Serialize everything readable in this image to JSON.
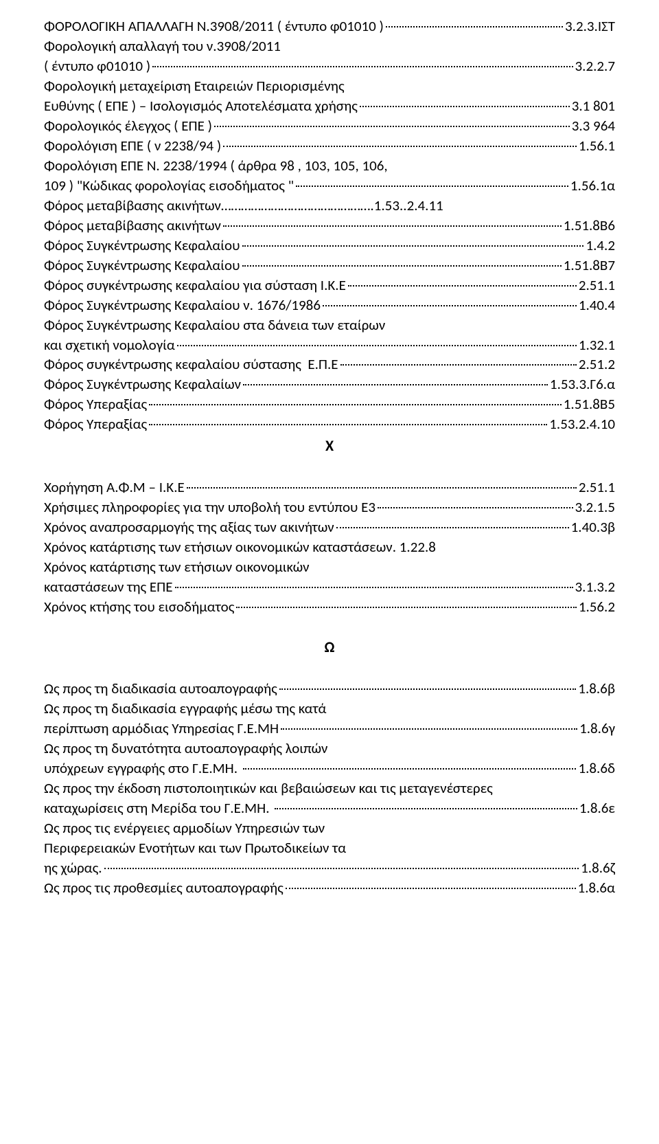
{
  "font_family": "Calibri",
  "text_color": "#000000",
  "background_color": "#ffffff",
  "lines": [
    {
      "type": "entry",
      "label": "ΦΟΡΟΛΟΓΙΚΗ ΑΠΑΛΛΑΓΗ Ν.3908/2011 ( έντυπο φ01010 )",
      "ref": "3.2.3.ΙΣΤ"
    },
    {
      "type": "plain",
      "text": "Φορολογική απαλλαγή του ν.3908/2011"
    },
    {
      "type": "entry",
      "label": "( έντυπο φ01010 )",
      "ref": "3.2.2.7"
    },
    {
      "type": "plain",
      "text": "Φορολογική μεταχείριση Εταιρειών Περιορισμένης"
    },
    {
      "type": "entry",
      "label": "Ευθύνης ( ΕΠΕ ) – Ισολογισμός Αποτελέσματα χρήσης",
      "ref": "3.1  801"
    },
    {
      "type": "entry",
      "label": "Φορολογικός έλεγχος ( ΕΠΕ )",
      "ref": "3.3  964"
    },
    {
      "type": "entry",
      "label": "Φορολόγιση ΕΠΕ ( ν 2238/94 )",
      "ref": "1.56.1"
    },
    {
      "type": "plain",
      "text": "Φορολόγιση ΕΠΕ Ν. 2238/1994 ( άρθρα 98 , 103, 105, 106,"
    },
    {
      "type": "entry",
      "label": "109 ) \"Κώδικας φορολογίας εισοδήματος \"",
      "ref": "1.56.1α"
    },
    {
      "type": "plain",
      "text": "Φόρος μεταβίβασης ακινήτων……………………………………….1.53..2.4.11"
    },
    {
      "type": "entry",
      "label": "Φόρος μεταβίβασης ακινήτων",
      "ref": "1.51.8Β6"
    },
    {
      "type": "entry",
      "label": "Φόρος Συγκέντρωσης Κεφαλαίου",
      "ref": "1.4.2"
    },
    {
      "type": "entry",
      "label": "Φόρος Συγκέντρωσης Κεφαλαίου",
      "ref": "1.51.8Β7"
    },
    {
      "type": "entry",
      "label": "Φόρος συγκέντρωσης κεφαλαίου για σύσταση Ι.Κ.Ε",
      "ref": "2.51.1"
    },
    {
      "type": "entry",
      "label": "Φόρος Συγκέντρωσης Κεφαλαίου ν. 1676/1986",
      "ref": "1.40.4"
    },
    {
      "type": "plain",
      "text": "Φόρος Συγκέντρωσης Κεφαλαίου στα δάνεια των εταίρων"
    },
    {
      "type": "entry",
      "label": "και σχετική νομολογία",
      "ref": "1.32.1"
    },
    {
      "type": "entry",
      "label": "Φόρος συγκέντρωσης κεφαλαίου σύστασης  Ε.Π.Ε",
      "ref": "2.51.2"
    },
    {
      "type": "entry",
      "label": "Φόρος Συγκέντρωσης Κεφαλαίων",
      "ref": "1.53.3.Γ6.α"
    },
    {
      "type": "entry",
      "label": "Φόρος Υπεραξίας",
      "ref": "1.51.8Β5"
    },
    {
      "type": "entry",
      "label": "Φόρος Υπεραξίας",
      "ref": "1.53.2.4.10"
    },
    {
      "type": "section",
      "letter": "Χ"
    },
    {
      "type": "spacer"
    },
    {
      "type": "entry",
      "label": "Χορήγηση Α.Φ.Μ – Ι.Κ.Ε",
      "ref": "2.51.1"
    },
    {
      "type": "entry",
      "label": "Χρήσιμες πληροφορίες για την υποβολή του εντύπου Ε3",
      "ref": "3.2.1.5"
    },
    {
      "type": "entry",
      "label": "Χρόνος αναπροσαρμογής της αξίας των ακινήτων",
      "ref": "1.40.3β"
    },
    {
      "type": "plain",
      "text": "Χρόνος κατάρτισης των ετήσιων οικονομικών καταστάσεων. 1.22.8"
    },
    {
      "type": "plain",
      "text": "Χρόνος κατάρτισης των ετήσιων οικονομικών"
    },
    {
      "type": "entry",
      "label": "καταστάσεων της ΕΠΕ",
      "ref": "3.1.3.2"
    },
    {
      "type": "entry",
      "label": "Χρόνος κτήσης του εισοδήματος",
      "ref": "1.56.2"
    },
    {
      "type": "spacer"
    },
    {
      "type": "section",
      "letter": "Ω"
    },
    {
      "type": "spacer"
    },
    {
      "type": "entry",
      "label": "Ως προς τη διαδικασία αυτοαπογραφής",
      "ref": "1.8.6β"
    },
    {
      "type": "plain",
      "text": "Ως προς τη διαδικασία εγγραφής μέσω της κατά"
    },
    {
      "type": "entry",
      "label": "περίπτωση αρμόδιας Υπηρεσίας Γ.Ε.ΜΗ",
      "ref": "1.8.6γ"
    },
    {
      "type": "plain",
      "text": "Ως προς τη δυνατότητα αυτοαπογραφής λοιπών"
    },
    {
      "type": "entry",
      "label": "υπόχρεων εγγραφής στο Γ.Ε.ΜΗ. ",
      "ref": "1.8.6δ"
    },
    {
      "type": "plain",
      "text": "Ως προς την έκδοση πιστοποιητικών και βεβαιώσεων και τις μεταγενέστερες"
    },
    {
      "type": "entry",
      "label": "καταχωρίσεις στη Μερίδα του Γ.Ε.ΜΗ. ",
      "ref": "1.8.6ε"
    },
    {
      "type": "plain",
      "text": "Ως προς τις ενέργειες αρμοδίων Υπηρεσιών των"
    },
    {
      "type": "plain",
      "text": "Περιφερειακών Ενοτήτων και των Πρωτοδικείων τα"
    },
    {
      "type": "entry",
      "label": "ης χώρας.",
      "ref": "1.8.6ζ"
    },
    {
      "type": "entry",
      "label": "Ως προς τις προθεσμίες αυτοαπογραφής",
      "ref": "1.8.6α"
    }
  ]
}
